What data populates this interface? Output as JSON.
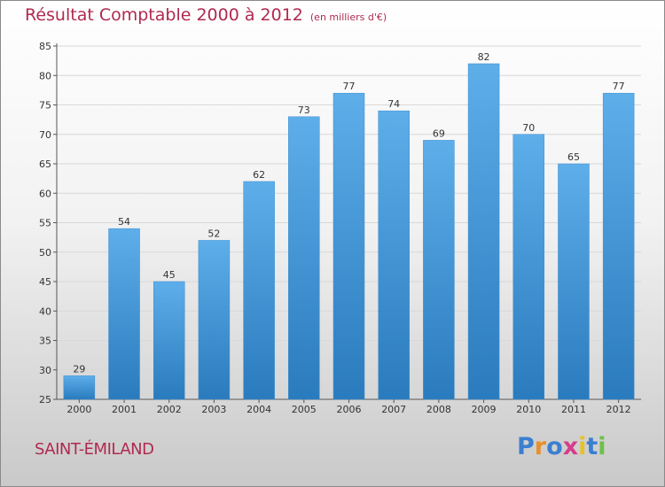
{
  "chart_data": {
    "type": "bar",
    "title": "Résultat Comptable 2000 à 2012",
    "unit_note": "(en milliers d'€)",
    "categories": [
      "2000",
      "2001",
      "2002",
      "2003",
      "2004",
      "2005",
      "2006",
      "2007",
      "2008",
      "2009",
      "2010",
      "2011",
      "2012"
    ],
    "values": [
      29,
      54,
      45,
      52,
      62,
      73,
      77,
      74,
      69,
      82,
      70,
      65,
      77
    ],
    "ylim": [
      25,
      85
    ],
    "yticks": [
      25,
      30,
      35,
      40,
      45,
      50,
      55,
      60,
      65,
      70,
      75,
      80,
      85
    ],
    "grid": true,
    "xlabel": "",
    "ylabel": "",
    "colors": {
      "bar_light": "#5eaeea",
      "bar_dark": "#2a7bbd",
      "title": "#b02a50"
    }
  },
  "place_name": "SAINT-ÉMILAND",
  "logo": {
    "text": "Proxiti",
    "letters": [
      "P",
      "r",
      "o",
      "x",
      "i",
      "t",
      "i"
    ],
    "colors": [
      "#3c7fd0",
      "#e8902a",
      "#3c7fd0",
      "#d73c8a",
      "#e8c12a",
      "#3c7fd0",
      "#6cc04a"
    ]
  }
}
